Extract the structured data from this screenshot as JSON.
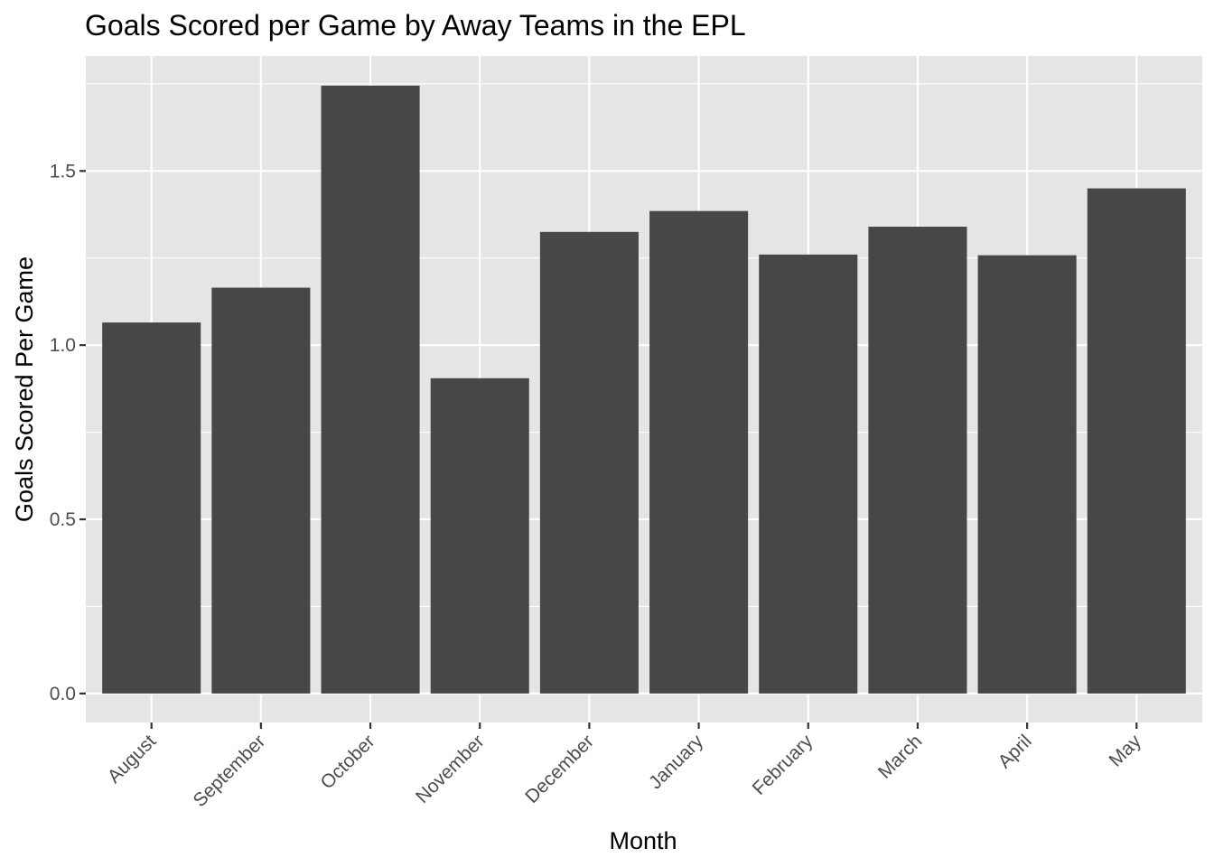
{
  "chart_data": {
    "type": "bar",
    "title": "Goals Scored per Game by Away Teams in the EPL",
    "xlabel": "Month",
    "ylabel": "Goals Scored Per Game",
    "categories": [
      "August",
      "September",
      "October",
      "November",
      "December",
      "January",
      "February",
      "March",
      "April",
      "May"
    ],
    "values": [
      1.065,
      1.165,
      1.745,
      0.905,
      1.325,
      1.385,
      1.26,
      1.34,
      1.258,
      1.45
    ],
    "ylim": [
      -0.0832,
      1.83
    ],
    "yticks": [
      0.0,
      0.5,
      1.0,
      1.5
    ],
    "ytick_labels": [
      "0.0",
      "0.5",
      "1.0",
      "1.5"
    ],
    "grid": true,
    "legend": "none",
    "colors": {
      "bar": "#474747",
      "panel": "#e5e5e5",
      "grid": "#ffffff"
    }
  }
}
